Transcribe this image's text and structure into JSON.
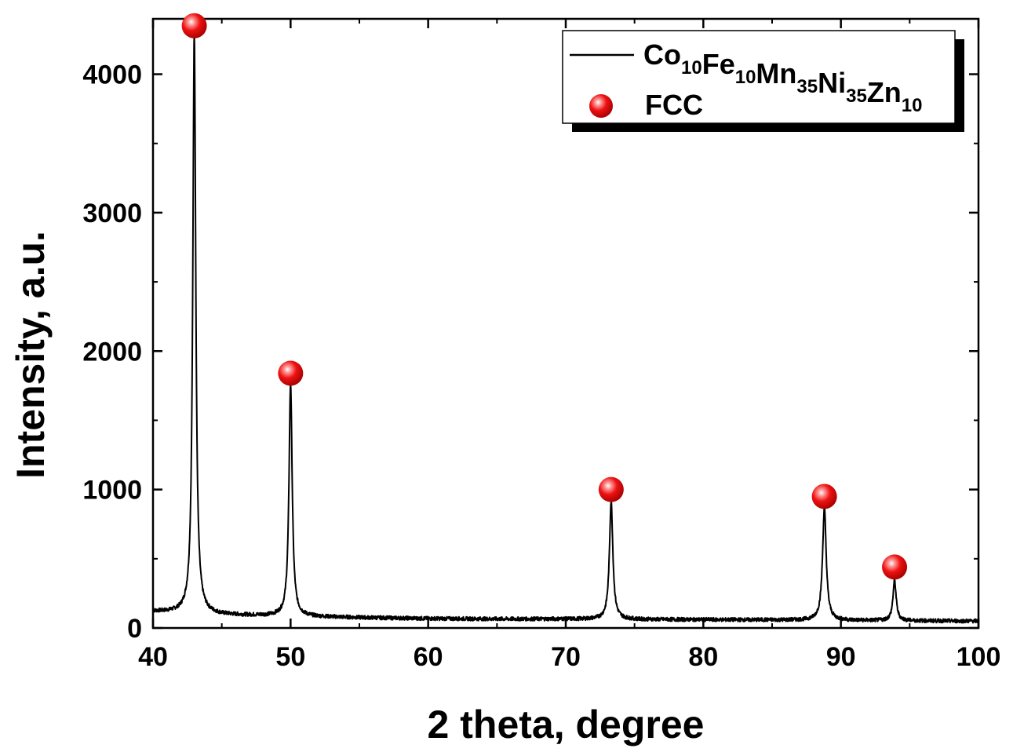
{
  "chart_data": {
    "type": "line",
    "title": "",
    "xlabel": "2 theta, degree",
    "ylabel": "Intensity, a.u.",
    "xlim": [
      40,
      100
    ],
    "ylim": [
      0,
      4400
    ],
    "x_ticks": [
      40,
      50,
      60,
      70,
      80,
      90,
      100
    ],
    "x_tick_labels": [
      "40",
      "50",
      "60",
      "70",
      "80",
      "90",
      "100"
    ],
    "y_ticks": [
      0,
      1000,
      2000,
      3000,
      4000
    ],
    "y_tick_labels": [
      "0",
      "1000",
      "2000",
      "3000",
      "4000"
    ],
    "grid": false,
    "legend_position": "top-right",
    "series": [
      {
        "name": "Co10Fe10Mn35Ni35Zn10",
        "color": "#000000",
        "baseline": [
          [
            40,
            120
          ],
          [
            45,
            95
          ],
          [
            50,
            85
          ],
          [
            55,
            75
          ],
          [
            60,
            68
          ],
          [
            65,
            65
          ],
          [
            70,
            65
          ],
          [
            75,
            62
          ],
          [
            80,
            60
          ],
          [
            85,
            58
          ],
          [
            90,
            55
          ],
          [
            95,
            52
          ],
          [
            100,
            50
          ]
        ],
        "peaks": [
          {
            "x": 43.0,
            "height": 4200,
            "width": 0.13
          },
          {
            "x": 50.0,
            "height": 1680,
            "width": 0.14
          },
          {
            "x": 73.3,
            "height": 850,
            "width": 0.15
          },
          {
            "x": 88.8,
            "height": 810,
            "width": 0.16
          },
          {
            "x": 93.9,
            "height": 290,
            "width": 0.14
          }
        ]
      }
    ],
    "markers": {
      "name": "FCC",
      "color": "#ee1111",
      "points": [
        [
          43.0,
          4350
        ],
        [
          50.0,
          1840
        ],
        [
          73.3,
          1000
        ],
        [
          88.8,
          950
        ],
        [
          93.9,
          440
        ]
      ]
    },
    "legend": {
      "line_entry": {
        "parts": [
          {
            "t": "Co",
            "sub": "10"
          },
          {
            "t": "Fe",
            "sub": "10"
          },
          {
            "t": "Mn",
            "sub": "35"
          },
          {
            "t": "Ni",
            "sub": "35"
          },
          {
            "t": "Zn",
            "sub": "10"
          }
        ]
      },
      "marker_entry": "FCC"
    }
  }
}
